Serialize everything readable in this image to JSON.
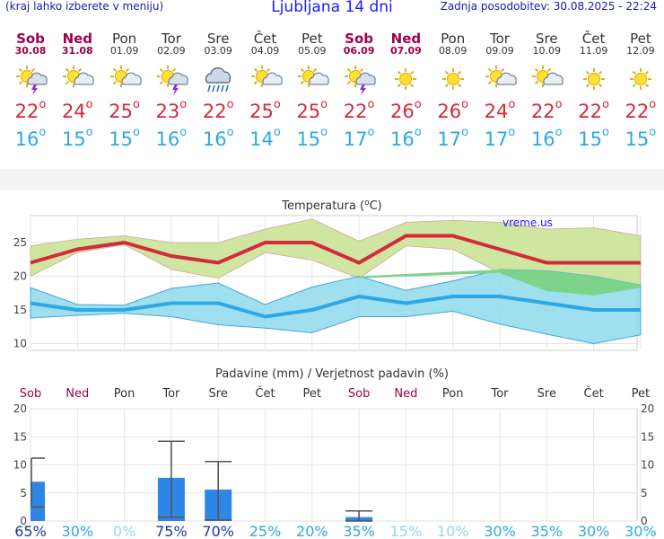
{
  "header": {
    "menu_hint": "(kraj lahko izberete v meniju)",
    "title": "Ljubljana 14 dni",
    "updated": "Zadnja posodobitev: 30.08.2025 - 22:24"
  },
  "days": [
    {
      "name": "Sob",
      "date": "30.08",
      "weekend": true,
      "icon": "sun-cloud-storm-icon",
      "tmax": "22",
      "tmin": "16",
      "pop": "65%"
    },
    {
      "name": "Ned",
      "date": "31.08",
      "weekend": true,
      "icon": "sun-cloud-icon",
      "tmax": "24",
      "tmin": "15",
      "pop": "30%"
    },
    {
      "name": "Pon",
      "date": "01.09",
      "weekend": false,
      "icon": "sun-cloud-icon",
      "tmax": "25",
      "tmin": "15",
      "pop": "0%"
    },
    {
      "name": "Tor",
      "date": "02.09",
      "weekend": false,
      "icon": "sun-cloud-storm-icon",
      "tmax": "23",
      "tmin": "16",
      "pop": "75%"
    },
    {
      "name": "Sre",
      "date": "03.09",
      "weekend": false,
      "icon": "cloud-rain-icon",
      "tmax": "22",
      "tmin": "16",
      "pop": "70%"
    },
    {
      "name": "Čet",
      "date": "04.09",
      "weekend": false,
      "icon": "sun-cloud-icon",
      "tmax": "25",
      "tmin": "14",
      "pop": "25%"
    },
    {
      "name": "Pet",
      "date": "05.09",
      "weekend": false,
      "icon": "sun-cloud-icon",
      "tmax": "25",
      "tmin": "15",
      "pop": "20%"
    },
    {
      "name": "Sob",
      "date": "06.09",
      "weekend": true,
      "icon": "sun-cloud-storm-icon",
      "tmax": "22",
      "tmin": "17",
      "pop": "35%"
    },
    {
      "name": "Ned",
      "date": "07.09",
      "weekend": true,
      "icon": "sun-icon",
      "tmax": "26",
      "tmin": "16",
      "pop": "15%"
    },
    {
      "name": "Pon",
      "date": "08.09",
      "weekend": false,
      "icon": "sun-icon",
      "tmax": "26",
      "tmin": "17",
      "pop": "10%"
    },
    {
      "name": "Tor",
      "date": "09.09",
      "weekend": false,
      "icon": "sun-cloud-icon",
      "tmax": "24",
      "tmin": "17",
      "pop": "30%"
    },
    {
      "name": "Sre",
      "date": "10.09",
      "weekend": false,
      "icon": "sun-cloud-icon",
      "tmax": "22",
      "tmin": "16",
      "pop": "35%"
    },
    {
      "name": "Čet",
      "date": "11.09",
      "weekend": false,
      "icon": "sun-icon",
      "tmax": "22",
      "tmin": "15",
      "pop": "30%"
    },
    {
      "name": "Pet",
      "date": "12.09",
      "weekend": false,
      "icon": "sun-icon",
      "tmax": "22",
      "tmin": "15",
      "pop": "30%"
    }
  ],
  "degree_symbol": "o",
  "colors": {
    "max": "#d42a3a",
    "min": "#2da8e6",
    "weekend": "#a0004a",
    "bar": "#2e86e6",
    "maxband": "#cfe6a0",
    "minband": "#8fd9ea",
    "overlap": "#7dd389"
  },
  "chart_data": [
    {
      "type": "line",
      "title": "Temperatura (",
      "title_unit": "C)",
      "title_deg": "o",
      "watermark": "vreme.us",
      "ylim": [
        9,
        29
      ],
      "yticks": [
        10,
        15,
        20,
        25
      ],
      "ytick_labels": [
        "10",
        "15",
        "20",
        "25"
      ],
      "series": [
        {
          "name": "max",
          "values": [
            22,
            24,
            25,
            23,
            22,
            25,
            25,
            22,
            26,
            26,
            24,
            22,
            22,
            22
          ]
        },
        {
          "name": "min",
          "values": [
            16,
            15,
            15,
            16,
            16,
            14,
            15,
            17,
            16,
            17,
            17,
            16,
            15,
            15
          ]
        },
        {
          "name": "max_upper",
          "values": [
            24.5,
            25.5,
            26,
            25,
            25,
            27,
            28.5,
            25.2,
            28,
            28.3,
            28,
            27,
            27.2,
            26
          ]
        },
        {
          "name": "max_lower",
          "values": [
            20,
            23.5,
            24.7,
            21,
            19.7,
            23.5,
            22.4,
            19.7,
            24.5,
            24,
            20.5,
            17.8,
            17.2,
            18.3
          ]
        },
        {
          "name": "min_upper",
          "values": [
            18.3,
            15.8,
            15.7,
            18.2,
            19,
            15.8,
            18.4,
            20,
            17.9,
            19.3,
            21,
            20.8,
            20,
            18.7
          ]
        },
        {
          "name": "min_lower",
          "values": [
            13.8,
            14.2,
            14.5,
            14,
            12.8,
            12.3,
            11.6,
            14,
            14,
            14.8,
            12.9,
            11.4,
            10,
            11.3
          ]
        }
      ]
    },
    {
      "type": "bar",
      "title": "Padavine (mm) / Verjetnost padavin (%)",
      "ylim": [
        0,
        20
      ],
      "yticks": [
        0,
        5,
        10,
        15,
        20
      ],
      "ytick_labels": [
        "0",
        "5",
        "10",
        "15",
        "20"
      ],
      "categories": [
        "Sob",
        "Ned",
        "Pon",
        "Tor",
        "Sre",
        "Čet",
        "Pet",
        "Sob",
        "Ned",
        "Pon",
        "Tor",
        "Sre",
        "Čet",
        "Pet"
      ],
      "values": [
        7,
        0,
        0,
        7.7,
        5.6,
        0,
        0,
        0.7,
        0,
        0,
        0,
        0,
        0,
        0
      ],
      "err_low": [
        2.5,
        0,
        0,
        0.7,
        0.2,
        0,
        0,
        0,
        0,
        0,
        0,
        0,
        0,
        0
      ],
      "err_high": [
        11.2,
        0,
        0,
        14.2,
        10.6,
        0,
        0,
        1.8,
        0,
        0,
        0,
        0,
        0,
        0
      ],
      "probability": [
        "65%",
        "30%",
        "0%",
        "75%",
        "70%",
        "25%",
        "20%",
        "35%",
        "15%",
        "10%",
        "30%",
        "35%",
        "30%",
        "30%"
      ]
    }
  ]
}
